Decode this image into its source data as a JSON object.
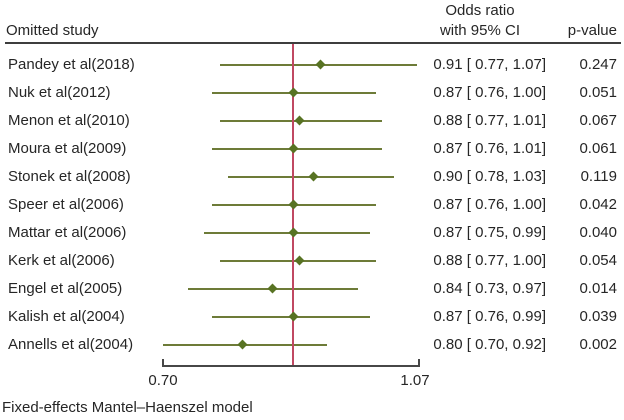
{
  "header": {
    "study_col": "Omitted study",
    "or_col_line1": "Odds ratio",
    "or_col_line2": "with 95% CI",
    "p_col": "p-value"
  },
  "footer": "Fixed-effects Mantel–Haenszel model",
  "colors": {
    "ci_line": "#6d7b38",
    "diamond": "#587323",
    "reference_line": "#c04862",
    "axis": "#474747",
    "text": "#262626"
  },
  "chart_data": {
    "type": "forest",
    "scale": "log",
    "xlabel": "",
    "axis": {
      "min": 0.7,
      "max": 1.07,
      "tick_labels": [
        "0.70",
        "1.07"
      ]
    },
    "reference_line": 0.87,
    "studies": [
      {
        "label": "Pandey et al(2018)",
        "or": 0.91,
        "ci_low": 0.77,
        "ci_high": 1.07,
        "or_text": "0.91 [ 0.77,  1.07]",
        "p_text": "0.247"
      },
      {
        "label": "Nuk et al(2012)",
        "or": 0.87,
        "ci_low": 0.76,
        "ci_high": 1.0,
        "or_text": "0.87 [ 0.76,  1.00]",
        "p_text": "0.051"
      },
      {
        "label": "Menon et al(2010)",
        "or": 0.88,
        "ci_low": 0.77,
        "ci_high": 1.01,
        "or_text": "0.88 [ 0.77,  1.01]",
        "p_text": "0.067"
      },
      {
        "label": "Moura et al(2009)",
        "or": 0.87,
        "ci_low": 0.76,
        "ci_high": 1.01,
        "or_text": "0.87 [ 0.76,  1.01]",
        "p_text": "0.061"
      },
      {
        "label": "Stonek et al(2008)",
        "or": 0.9,
        "ci_low": 0.78,
        "ci_high": 1.03,
        "or_text": "0.90 [ 0.78,  1.03]",
        "p_text": "0.119"
      },
      {
        "label": "Speer et al(2006)",
        "or": 0.87,
        "ci_low": 0.76,
        "ci_high": 1.0,
        "or_text": "0.87 [ 0.76,  1.00]",
        "p_text": "0.042"
      },
      {
        "label": "Mattar et al(2006)",
        "or": 0.87,
        "ci_low": 0.75,
        "ci_high": 0.99,
        "or_text": "0.87 [ 0.75,  0.99]",
        "p_text": "0.040"
      },
      {
        "label": "Kerk et al(2006)",
        "or": 0.88,
        "ci_low": 0.77,
        "ci_high": 1.0,
        "or_text": "0.88 [ 0.77,  1.00]",
        "p_text": "0.054"
      },
      {
        "label": "Engel et al(2005)",
        "or": 0.84,
        "ci_low": 0.73,
        "ci_high": 0.97,
        "or_text": "0.84 [ 0.73,  0.97]",
        "p_text": "0.014"
      },
      {
        "label": "Kalish et al(2004)",
        "or": 0.87,
        "ci_low": 0.76,
        "ci_high": 0.99,
        "or_text": "0.87 [ 0.76,  0.99]",
        "p_text": "0.039"
      },
      {
        "label": "Annells et al(2004)",
        "or": 0.8,
        "ci_low": 0.7,
        "ci_high": 0.92,
        "or_text": "0.80 [ 0.70,  0.92]",
        "p_text": "0.002"
      }
    ]
  }
}
